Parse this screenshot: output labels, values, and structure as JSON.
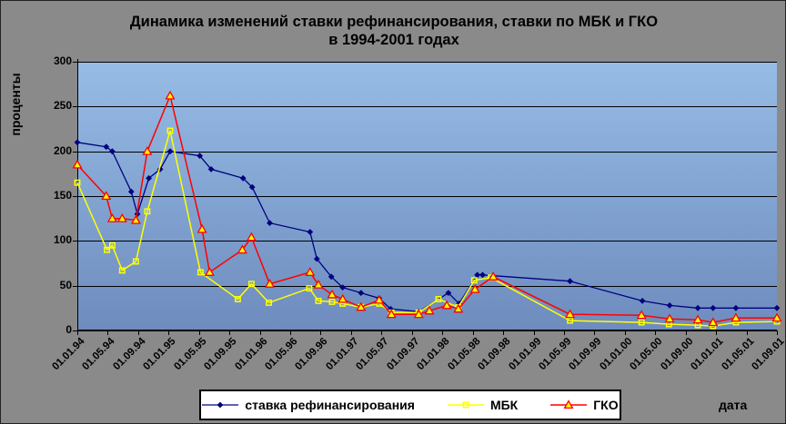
{
  "colors": {
    "background": "#8A8A8A",
    "plot_gradient_top": "#96BCE5",
    "plot_gradient_bottom": "#6E8CBE",
    "grid": "#000000",
    "axis": "#000000",
    "legend_background": "#FFFFFF",
    "text": "#000000"
  },
  "chart_data": {
    "type": "line",
    "title_line1": "Динамика изменений ставки рефинансирования, ставки по МБК и ГКО",
    "title_line2": "в 1994-2001 годах",
    "ylabel": "проценты",
    "xlabel": "дата",
    "ylim": [
      0,
      300
    ],
    "yticks": [
      300,
      250,
      200,
      150,
      100,
      50,
      0
    ],
    "grid": "horizontal",
    "legend_position": "bottom",
    "x_axis_note": "time axis: point x = months since 01.01.94, one tick every 4 months",
    "categories": [
      "01.01.94",
      "01.05.94",
      "01.09.94",
      "01.01.95",
      "01.05.95",
      "01.09.95",
      "01.01.96",
      "01.05.96",
      "01.09.96",
      "01.01.97",
      "01.05.97",
      "01.09.97",
      "01.01.98",
      "01.05.98",
      "01.09.98",
      "01.01.99",
      "01.05.99",
      "01.09.99",
      "01.01.00",
      "01.05.00",
      "01.09.00",
      "01.01.01",
      "01.05.01",
      "01.09.01"
    ],
    "series": [
      {
        "name": "ставка рефинансирования",
        "color": "#000080",
        "marker": "diamond",
        "line_width": 1.3,
        "points": [
          [
            0,
            210
          ],
          [
            3.8,
            205
          ],
          [
            4.6,
            200
          ],
          [
            7.1,
            155
          ],
          [
            7.9,
            130
          ],
          [
            9.4,
            170
          ],
          [
            10.9,
            180
          ],
          [
            12.2,
            200
          ],
          [
            16.1,
            195
          ],
          [
            17.6,
            180
          ],
          [
            21.8,
            170
          ],
          [
            23,
            160
          ],
          [
            25.3,
            120
          ],
          [
            30.6,
            110
          ],
          [
            31.5,
            80
          ],
          [
            33.4,
            60
          ],
          [
            34.9,
            48
          ],
          [
            37.3,
            42
          ],
          [
            39.7,
            36
          ],
          [
            41.2,
            24
          ],
          [
            44.9,
            21
          ],
          [
            48.8,
            42
          ],
          [
            50.2,
            30
          ],
          [
            52.6,
            62
          ],
          [
            53.3,
            62
          ],
          [
            64.8,
            55
          ],
          [
            74.3,
            33
          ],
          [
            77.9,
            28
          ],
          [
            81.6,
            25
          ],
          [
            83.6,
            25
          ],
          [
            86.6,
            25
          ],
          [
            92,
            25
          ]
        ]
      },
      {
        "name": "МБК",
        "color": "#FFFF00",
        "marker": "square",
        "line_width": 1.5,
        "points": [
          [
            0,
            165
          ],
          [
            3.9,
            90
          ],
          [
            4.6,
            95
          ],
          [
            5.9,
            67
          ],
          [
            7.7,
            77
          ],
          [
            9.2,
            133
          ],
          [
            12.2,
            223
          ],
          [
            16.2,
            65
          ],
          [
            21.1,
            35
          ],
          [
            22.9,
            52
          ],
          [
            25.2,
            31
          ],
          [
            30.5,
            47
          ],
          [
            31.7,
            33
          ],
          [
            33.5,
            32
          ],
          [
            34.9,
            30
          ],
          [
            37.3,
            26
          ],
          [
            39.7,
            30
          ],
          [
            41.3,
            20
          ],
          [
            44.9,
            20
          ],
          [
            47.5,
            35
          ],
          [
            50.1,
            26
          ],
          [
            52.2,
            56
          ],
          [
            54.4,
            59
          ],
          [
            64.8,
            11
          ],
          [
            74.2,
            9
          ],
          [
            77.8,
            7
          ],
          [
            81.6,
            6
          ],
          [
            83.6,
            5
          ],
          [
            86.6,
            9
          ],
          [
            92,
            10
          ]
        ]
      },
      {
        "name": "ГКО",
        "color": "#FF0000",
        "marker": "triangle",
        "marker_fill": "#FFFF00",
        "line_width": 1.5,
        "points": [
          [
            0,
            185
          ],
          [
            3.8,
            150
          ],
          [
            4.6,
            125
          ],
          [
            5.9,
            125
          ],
          [
            7.7,
            123
          ],
          [
            9.2,
            200
          ],
          [
            12.2,
            262
          ],
          [
            16.4,
            113
          ],
          [
            17.4,
            65
          ],
          [
            21.7,
            90
          ],
          [
            22.9,
            104
          ],
          [
            25.3,
            52
          ],
          [
            30.6,
            65
          ],
          [
            31.7,
            51
          ],
          [
            33.5,
            40
          ],
          [
            34.9,
            35
          ],
          [
            37.3,
            26
          ],
          [
            39.7,
            34
          ],
          [
            41.3,
            18
          ],
          [
            44.9,
            18
          ],
          [
            46.3,
            22
          ],
          [
            48.6,
            28
          ],
          [
            50.1,
            24
          ],
          [
            52.3,
            46
          ],
          [
            54.7,
            60
          ],
          [
            64.8,
            18
          ],
          [
            74.2,
            17
          ],
          [
            77.9,
            13
          ],
          [
            81.6,
            12
          ],
          [
            83.6,
            9
          ],
          [
            86.6,
            14
          ],
          [
            92,
            14
          ]
        ]
      }
    ]
  }
}
